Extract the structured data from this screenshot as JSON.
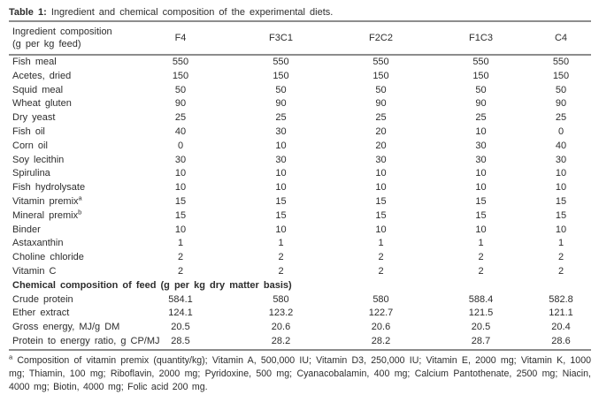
{
  "colors": {
    "background": "#ffffff",
    "text": "#2d2d2d",
    "rule": "#8d8d8d"
  },
  "caption": {
    "label": "Table 1:",
    "text": "Ingredient and chemical composition of the experimental diets."
  },
  "table": {
    "header": {
      "col1_line1": "Ingredient composition",
      "col1_line2": "(g per kg feed)",
      "columns": [
        "F4",
        "F3C1",
        "F2C2",
        "F1C3",
        "C4"
      ]
    },
    "ingredient_rows": [
      {
        "label": "Fish meal",
        "sup": "",
        "values": [
          "550",
          "550",
          "550",
          "550",
          "550"
        ]
      },
      {
        "label": "Acetes, dried",
        "sup": "",
        "values": [
          "150",
          "150",
          "150",
          "150",
          "150"
        ]
      },
      {
        "label": "Squid meal",
        "sup": "",
        "values": [
          "50",
          "50",
          "50",
          "50",
          "50"
        ]
      },
      {
        "label": "Wheat gluten",
        "sup": "",
        "values": [
          "90",
          "90",
          "90",
          "90",
          "90"
        ]
      },
      {
        "label": "Dry yeast",
        "sup": "",
        "values": [
          "25",
          "25",
          "25",
          "25",
          "25"
        ]
      },
      {
        "label": "Fish oil",
        "sup": "",
        "values": [
          "40",
          "30",
          "20",
          "10",
          "0"
        ]
      },
      {
        "label": "Corn oil",
        "sup": "",
        "values": [
          "0",
          "10",
          "20",
          "30",
          "40"
        ]
      },
      {
        "label": "Soy lecithin",
        "sup": "",
        "values": [
          "30",
          "30",
          "30",
          "30",
          "30"
        ]
      },
      {
        "label": "Spirulina",
        "sup": "",
        "values": [
          "10",
          "10",
          "10",
          "10",
          "10"
        ]
      },
      {
        "label": "Fish hydrolysate",
        "sup": "",
        "values": [
          "10",
          "10",
          "10",
          "10",
          "10"
        ]
      },
      {
        "label": "Vitamin premix",
        "sup": "a",
        "values": [
          "15",
          "15",
          "15",
          "15",
          "15"
        ]
      },
      {
        "label": "Mineral premix",
        "sup": "b",
        "values": [
          "15",
          "15",
          "15",
          "15",
          "15"
        ]
      },
      {
        "label": "Binder",
        "sup": "",
        "values": [
          "10",
          "10",
          "10",
          "10",
          "10"
        ]
      },
      {
        "label": "Astaxanthin",
        "sup": "",
        "values": [
          "1",
          "1",
          "1",
          "1",
          "1"
        ]
      },
      {
        "label": "Choline chloride",
        "sup": "",
        "values": [
          "2",
          "2",
          "2",
          "2",
          "2"
        ]
      },
      {
        "label": "Vitamin C",
        "sup": "",
        "values": [
          "2",
          "2",
          "2",
          "2",
          "2"
        ]
      }
    ],
    "section_header": "Chemical composition of feed (g per kg dry matter basis)",
    "chemical_rows": [
      {
        "label": "Crude protein",
        "sup": "",
        "values": [
          "584.1",
          "580",
          "580",
          "588.4",
          "582.8"
        ]
      },
      {
        "label": "Ether extract",
        "sup": "",
        "values": [
          "124.1",
          "123.2",
          "122.7",
          "121.5",
          "121.1"
        ]
      },
      {
        "label": "Gross energy, MJ/g DM",
        "sup": "",
        "values": [
          "20.5",
          "20.6",
          "20.6",
          "20.5",
          "20.4"
        ]
      },
      {
        "label": "Protein to energy ratio, g CP/MJ",
        "sup": "",
        "values": [
          "28.5",
          "28.2",
          "28.2",
          "28.7",
          "28.6"
        ]
      }
    ]
  },
  "footnote": {
    "marker": "a",
    "text": "Composition of vitamin premix (quantity/kg); Vitamin A, 500,000 IU; Vitamin D3, 250,000 IU; Vitamin E, 2000 mg; Vitamin K, 1000 mg; Thiamin, 100 mg; Riboflavin, 2000 mg; Pyridoxine, 500 mg; Cyanacobalamin, 400 mg; Calcium Pantothenate, 2500 mg; Niacin, 4000 mg; Biotin, 4000 mg; Folic acid 200 mg."
  }
}
